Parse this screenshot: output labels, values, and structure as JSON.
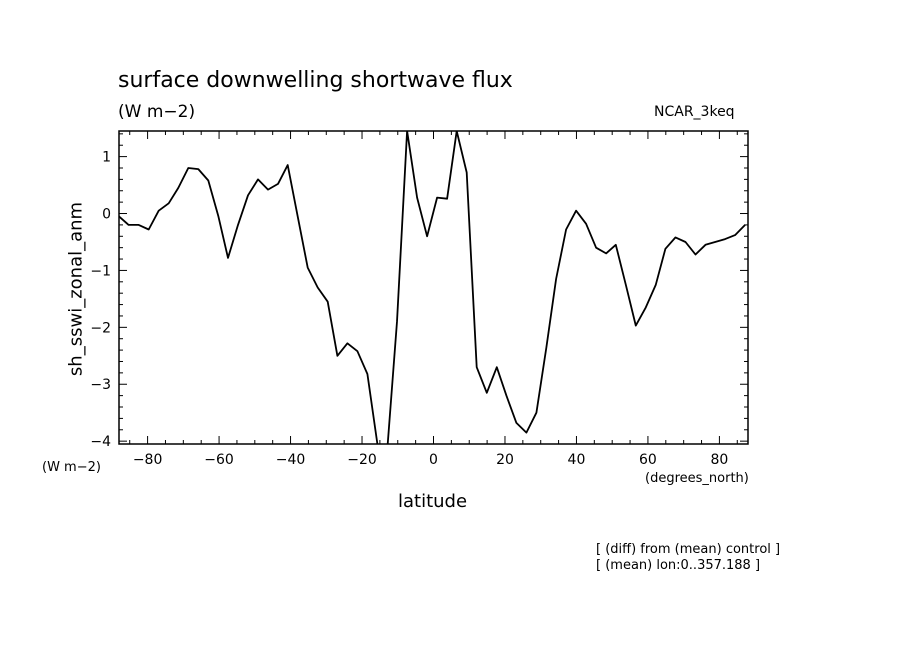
{
  "chart_data": {
    "type": "line",
    "title": "surface downwelling shortwave flux",
    "units": "(W m−2)",
    "model_label": "NCAR_3keq",
    "ylabel": "sh_sswi_zonal_anm",
    "y_unit_label": "(W m−2)",
    "xlabel": "latitude",
    "x_unit_label": "(degrees_north)",
    "xlim": [
      -88,
      88
    ],
    "ylim": [
      -4.05,
      1.45
    ],
    "x_ticks": [
      -80,
      -60,
      -40,
      -20,
      0,
      20,
      40,
      60,
      80
    ],
    "x_tick_labels": [
      "−80",
      "−60",
      "−40",
      "−20",
      "0",
      "20",
      "40",
      "60",
      "80"
    ],
    "y_ticks": [
      -4,
      -3,
      -2,
      -1,
      0,
      1
    ],
    "y_tick_labels": [
      "−4",
      "−3",
      "−2",
      "−1",
      "0",
      "1"
    ],
    "grid": false,
    "x": [
      -88.0,
      -85.3,
      -82.5,
      -79.7,
      -76.9,
      -74.1,
      -71.4,
      -68.6,
      -65.8,
      -63.0,
      -60.2,
      -57.5,
      -54.7,
      -51.9,
      -49.1,
      -46.3,
      -43.5,
      -40.8,
      -38.0,
      -35.2,
      -32.4,
      -29.6,
      -26.9,
      -24.1,
      -21.3,
      -18.5,
      -15.7,
      -12.9,
      -10.2,
      -7.4,
      -4.6,
      -1.8,
      1.0,
      3.8,
      6.5,
      9.3,
      12.1,
      14.9,
      17.7,
      20.4,
      23.2,
      26.0,
      28.8,
      31.6,
      34.3,
      37.1,
      39.9,
      42.7,
      45.5,
      48.3,
      51.0,
      53.8,
      56.6,
      59.4,
      62.2,
      64.9,
      67.7,
      70.5,
      73.3,
      76.1,
      78.8,
      81.6,
      84.4,
      87.2
    ],
    "series": [
      {
        "values": [
          -0.05,
          -0.2,
          -0.2,
          -0.28,
          0.05,
          0.18,
          0.45,
          0.8,
          0.78,
          0.58,
          -0.05,
          -0.78,
          -0.2,
          0.32,
          0.6,
          0.42,
          0.52,
          0.85,
          -0.05,
          -0.95,
          -1.3,
          -1.55,
          -2.5,
          -2.28,
          -2.42,
          -2.82,
          -4.05,
          -4.12,
          -1.9,
          1.45,
          0.28,
          -0.4,
          0.28,
          0.26,
          1.45,
          0.72,
          -2.7,
          -3.15,
          -2.7,
          -3.2,
          -3.68,
          -3.85,
          -3.5,
          -2.35,
          -1.15,
          -0.28,
          0.05,
          -0.18,
          -0.6,
          -0.7,
          -0.55,
          -1.25,
          -1.97,
          -1.65,
          -1.25,
          -0.62,
          -0.42,
          -0.5,
          -0.72,
          -0.55,
          -0.5,
          -0.45,
          -0.38,
          -0.2
        ],
        "color": "#000000"
      }
    ]
  },
  "annotations": [
    "[ (diff) from (mean) control ]",
    "[ (mean) lon:0..357.188 ]"
  ]
}
